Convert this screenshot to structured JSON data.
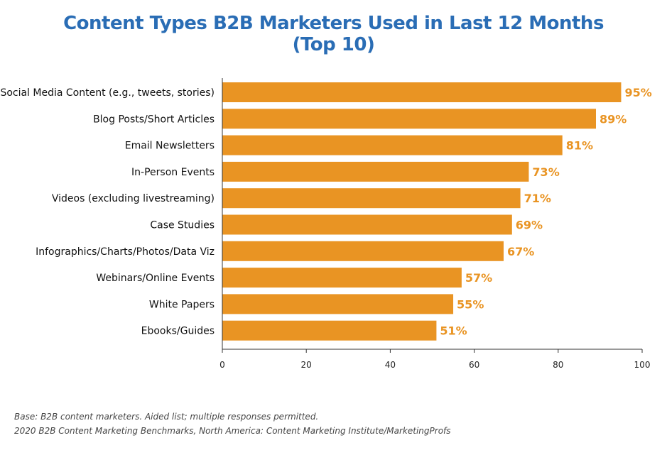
{
  "chart_data": {
    "type": "bar",
    "orientation": "horizontal",
    "title": "Content Types B2B Marketers Used in Last 12 Months",
    "subtitle": "(Top 10)",
    "categories": [
      "Social Media Content (e.g., tweets, stories)",
      "Blog Posts/Short Articles",
      "Email Newsletters",
      "In-Person Events",
      "Videos (excluding livestreaming)",
      "Case Studies",
      "Infographics/Charts/Photos/Data Viz",
      "Webinars/Online Events",
      "White Papers",
      "Ebooks/Guides"
    ],
    "values": [
      95,
      89,
      81,
      73,
      71,
      69,
      67,
      57,
      55,
      51
    ],
    "data_labels": [
      "95%",
      "89%",
      "81%",
      "73%",
      "71%",
      "69%",
      "67%",
      "57%",
      "55%",
      "51%"
    ],
    "xlim": [
      0,
      100
    ],
    "xticks": [
      "0",
      "20",
      "40",
      "60",
      "80",
      "100"
    ],
    "xlabel": "",
    "ylabel": "",
    "grid": false,
    "bar_color": "#e99423",
    "label_color": "#e99423",
    "title_color": "#2a6db5"
  },
  "footer": {
    "base": "Base: B2B content marketers. Aided list; multiple responses permitted.",
    "source": "2020 B2B Content Marketing Benchmarks, North America: Content Marketing Institute/MarketingProfs"
  }
}
